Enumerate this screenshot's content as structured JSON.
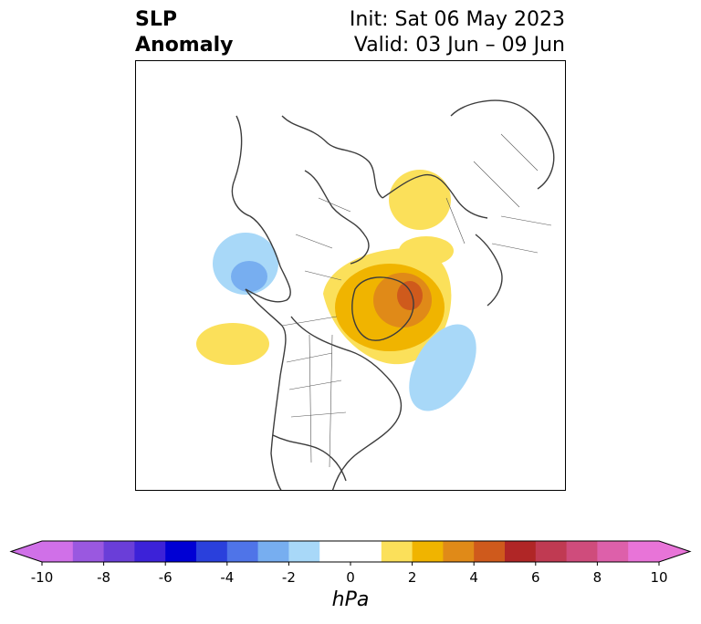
{
  "title": {
    "left_line1": "SLP",
    "left_line2": "Anomaly",
    "right_line1": "Init: Sat 06 May 2023",
    "right_line2": "Valid: 03 Jun – 09 Jun"
  },
  "map": {
    "projection": "north-polar-stereographic",
    "region": "North America / North Atlantic / Arctic",
    "anomalies": [
      {
        "id": "alaska-low",
        "sign": "negative",
        "peak_hPa": -3,
        "region": "Gulf of Alaska / NE Pacific"
      },
      {
        "id": "pacific-high",
        "sign": "positive",
        "peak_hPa": 1,
        "region": "NE Pacific south of Alaska"
      },
      {
        "id": "greenland-high",
        "sign": "positive",
        "peak_hPa": 4,
        "region": "Greenland / Baffin Bay"
      },
      {
        "id": "arctic-high",
        "sign": "positive",
        "peak_hPa": 1,
        "region": "Barents / Kara Sea"
      },
      {
        "id": "atlantic-low",
        "sign": "negative",
        "peak_hPa": -1,
        "region": "Central North Atlantic"
      }
    ]
  },
  "colorbar": {
    "levels": [
      -10,
      -9,
      -8,
      -7,
      -6,
      -5,
      -4,
      -3,
      -2,
      -1,
      1,
      2,
      3,
      4,
      5,
      6,
      7,
      8,
      9,
      10
    ],
    "colors": [
      "#d070e8",
      "#9a58e0",
      "#6a3ed8",
      "#3c22d8",
      "#0000d4",
      "#2a40dc",
      "#4f74e8",
      "#77aef0",
      "#a8d8f8",
      "#ffffff",
      "#fbe05a",
      "#f0b400",
      "#e08a18",
      "#cf5a1c",
      "#b02626",
      "#c03a52",
      "#cf4c7c",
      "#dd60aa",
      "#e874d8"
    ],
    "extend": "both",
    "tick_labels": [
      "-10",
      "-8",
      "-6",
      "-4",
      "-2",
      "0",
      "2",
      "4",
      "6",
      "8",
      "10"
    ],
    "tick_values": [
      -10,
      -8,
      -6,
      -4,
      -2,
      0,
      2,
      4,
      6,
      8,
      10
    ],
    "unit_label": "hPa"
  }
}
